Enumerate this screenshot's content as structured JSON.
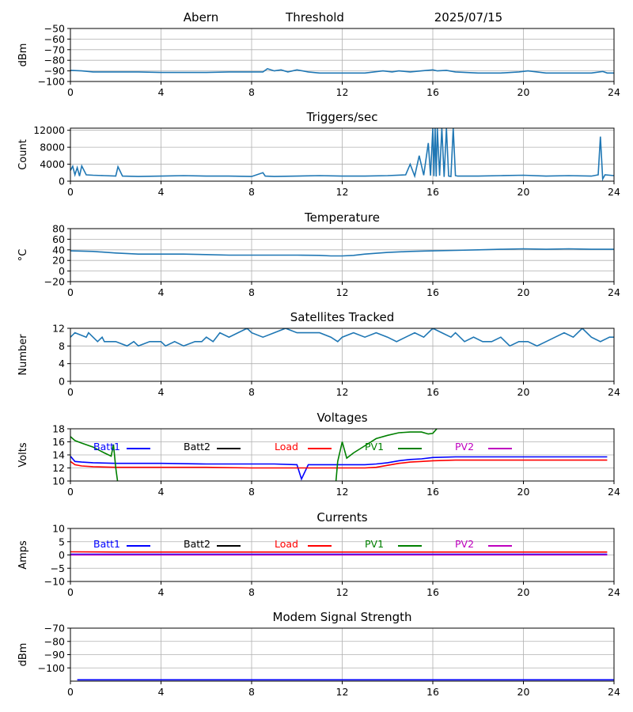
{
  "header": {
    "station": "Abern",
    "mode": "Threshold",
    "date": "2025/07/15"
  },
  "colors": {
    "series_default": "#1f77b4",
    "batt1": "#0000ff",
    "batt2": "#000000",
    "load": "#ff0000",
    "pv1": "#008000",
    "pv2": "#bf00bf",
    "grid": "#b0b0b0"
  },
  "chart_data": [
    {
      "id": "noise",
      "type": "line",
      "title": "",
      "xlabel": "",
      "ylabel": "dBm",
      "xlim": [
        0,
        24
      ],
      "ylim": [
        -100,
        -50
      ],
      "xticks": [
        0,
        4,
        8,
        12,
        16,
        20,
        24
      ],
      "yticks": [
        -100,
        -90,
        -80,
        -70,
        -60,
        -50
      ],
      "grid": true,
      "series": [
        {
          "color": "#1f77b4",
          "x": [
            0,
            0.5,
            1,
            2,
            3,
            4,
            5,
            6,
            7,
            8,
            8.5,
            8.7,
            9,
            9.3,
            9.6,
            10,
            10.5,
            11,
            12,
            13,
            13.8,
            14.2,
            14.5,
            15,
            15.5,
            16,
            16.2,
            16.6,
            17,
            18,
            19,
            19.8,
            20.2,
            20.6,
            21,
            22,
            23,
            23.5,
            23.7,
            24
          ],
          "y": [
            -89.5,
            -90,
            -91,
            -91,
            -91,
            -91.5,
            -91.5,
            -91.5,
            -91,
            -91,
            -91,
            -88,
            -90,
            -89,
            -91,
            -89,
            -91,
            -92,
            -92,
            -92,
            -90,
            -91,
            -90,
            -91,
            -90,
            -89,
            -90,
            -89.5,
            -91,
            -92,
            -92,
            -91,
            -90,
            -91,
            -92,
            -92,
            -92,
            -90.5,
            -92,
            -92
          ]
        }
      ]
    },
    {
      "id": "triggers",
      "type": "line",
      "title": "Triggers/sec",
      "xlabel": "",
      "ylabel": "Count",
      "xlim": [
        0,
        24
      ],
      "ylim": [
        0,
        12500
      ],
      "xticks": [
        0,
        4,
        8,
        12,
        16,
        20,
        24
      ],
      "yticks": [
        0,
        4000,
        8000,
        12000
      ],
      "grid": true,
      "series": [
        {
          "color": "#1f77b4",
          "x": [
            0,
            0.1,
            0.2,
            0.3,
            0.4,
            0.5,
            0.7,
            1,
            1.5,
            2,
            2.1,
            2.3,
            3,
            4,
            5,
            6,
            7,
            8,
            8.5,
            8.6,
            9,
            10,
            11,
            12,
            13,
            14,
            14.8,
            15,
            15.2,
            15.4,
            15.6,
            15.8,
            15.9,
            16,
            16.05,
            16.1,
            16.15,
            16.2,
            16.3,
            16.4,
            16.5,
            16.6,
            16.7,
            16.8,
            16.9,
            17,
            17.1,
            18,
            19,
            20,
            21,
            22,
            23,
            23.3,
            23.4,
            23.5,
            23.6,
            24
          ],
          "y": [
            2500,
            3500,
            1500,
            3200,
            1200,
            3600,
            1500,
            1400,
            1300,
            1200,
            3400,
            1200,
            1100,
            1200,
            1300,
            1200,
            1200,
            1100,
            2000,
            1200,
            1100,
            1200,
            1300,
            1200,
            1200,
            1300,
            1500,
            4000,
            1200,
            6000,
            1400,
            9000,
            1300,
            12500,
            1200,
            12500,
            1100,
            12500,
            1300,
            12500,
            1000,
            12500,
            1200,
            1100,
            12500,
            1300,
            1200,
            1200,
            1300,
            1400,
            1200,
            1300,
            1200,
            1500,
            10500,
            500,
            1500,
            1300
          ]
        }
      ]
    },
    {
      "id": "temperature",
      "type": "line",
      "title": "Temperature",
      "xlabel": "",
      "ylabel": "°C",
      "xlim": [
        0,
        24
      ],
      "ylim": [
        -20,
        80
      ],
      "xticks": [
        0,
        4,
        8,
        12,
        16,
        20,
        24
      ],
      "yticks": [
        -20,
        0,
        20,
        40,
        60,
        80
      ],
      "grid": true,
      "series": [
        {
          "color": "#1f77b4",
          "x": [
            0,
            1,
            2,
            3,
            4,
            5,
            6,
            7,
            8,
            9,
            10,
            11,
            11.5,
            12,
            12.5,
            13,
            14,
            15,
            16,
            17,
            18,
            19,
            20,
            21,
            22,
            23,
            24
          ],
          "y": [
            38,
            37,
            34,
            32,
            32,
            32,
            31,
            30,
            30,
            30,
            30,
            29.5,
            28.5,
            28.5,
            29.5,
            32,
            35,
            37,
            38,
            39,
            40,
            41,
            42,
            41,
            42,
            41,
            41
          ]
        }
      ]
    },
    {
      "id": "satellites",
      "type": "line",
      "title": "Satellites Tracked",
      "xlabel": "",
      "ylabel": "Number",
      "xlim": [
        0,
        24
      ],
      "ylim": [
        0,
        12
      ],
      "xticks": [
        0,
        4,
        8,
        12,
        16,
        20,
        24
      ],
      "yticks": [
        0,
        4,
        8,
        12
      ],
      "grid": true,
      "series": [
        {
          "color": "#1f77b4",
          "x": [
            0,
            0.2,
            0.7,
            0.8,
            1.0,
            1.2,
            1.4,
            1.5,
            2.0,
            2.5,
            2.8,
            3.0,
            3.5,
            4.0,
            4.2,
            4.6,
            5.0,
            5.5,
            5.8,
            6.0,
            6.3,
            6.6,
            7.0,
            7.4,
            7.8,
            8.0,
            8.5,
            9.0,
            9.5,
            10.0,
            10.5,
            11.0,
            11.5,
            11.8,
            12.0,
            12.5,
            13.0,
            13.5,
            14.0,
            14.4,
            14.8,
            15.2,
            15.6,
            16.0,
            16.4,
            16.8,
            17.0,
            17.4,
            17.8,
            18.2,
            18.6,
            19.0,
            19.4,
            19.8,
            20.2,
            20.6,
            21.0,
            21.4,
            21.8,
            22.2,
            22.6,
            23.0,
            23.4,
            23.8,
            24
          ],
          "y": [
            10,
            11,
            10,
            11,
            10,
            9,
            10,
            9,
            9,
            8,
            9,
            8,
            9,
            9,
            8,
            9,
            8,
            9,
            9,
            10,
            9,
            11,
            10,
            11,
            12,
            11,
            10,
            11,
            12,
            11,
            11,
            11,
            10,
            9,
            10,
            11,
            10,
            11,
            10,
            9,
            10,
            11,
            10,
            12,
            11,
            10,
            11,
            9,
            10,
            9,
            9,
            10,
            8,
            9,
            9,
            8,
            9,
            10,
            11,
            10,
            12,
            10,
            9,
            10,
            10
          ]
        }
      ]
    },
    {
      "id": "voltages",
      "type": "line",
      "title": "Voltages",
      "xlabel": "",
      "ylabel": "Volts",
      "xlim": [
        0,
        24
      ],
      "ylim": [
        10,
        18
      ],
      "xticks": [
        0,
        4,
        8,
        12,
        16,
        20,
        24
      ],
      "yticks": [
        10,
        12,
        14,
        16,
        18
      ],
      "grid": true,
      "legend": "inline-top",
      "series": [
        {
          "name": "Batt1",
          "color": "#0000ff",
          "x": [
            0,
            0.2,
            0.5,
            1,
            2,
            4,
            6,
            8,
            9,
            10,
            10.2,
            10.5,
            11,
            12,
            13,
            13.5,
            14,
            14.5,
            15,
            15.5,
            16,
            17,
            18,
            20,
            22,
            23.7
          ],
          "y": [
            13.8,
            13.0,
            12.9,
            12.8,
            12.7,
            12.7,
            12.6,
            12.6,
            12.6,
            12.5,
            10.3,
            12.5,
            12.5,
            12.5,
            12.5,
            12.6,
            12.8,
            13.1,
            13.3,
            13.4,
            13.6,
            13.7,
            13.7,
            13.7,
            13.7,
            13.7
          ]
        },
        {
          "name": "Load",
          "color": "#ff0000",
          "x": [
            0,
            0.2,
            0.5,
            1,
            2,
            4,
            6,
            8,
            10,
            12,
            13,
            13.5,
            14,
            14.5,
            15,
            15.5,
            16,
            17,
            18,
            20,
            22,
            23.7
          ],
          "y": [
            13.0,
            12.5,
            12.3,
            12.2,
            12.1,
            12.1,
            12.1,
            12.0,
            12.0,
            12.0,
            12.0,
            12.1,
            12.4,
            12.7,
            12.9,
            13.0,
            13.1,
            13.2,
            13.2,
            13.2,
            13.2,
            13.2
          ]
        },
        {
          "name": "PV1",
          "color": "#008000",
          "x": [
            0,
            0.2,
            0.5,
            1.0,
            1.5,
            1.8,
            1.9,
            2.0,
            2.1,
            2.2
          ],
          "y": [
            16.8,
            16.2,
            15.8,
            15.2,
            14.3,
            13.8,
            15.6,
            12.0,
            9.5,
            9.0
          ]
        },
        {
          "name": "PV1",
          "color": "#008000",
          "x": [
            11.7,
            11.8,
            12.0,
            12.2,
            12.5,
            13.0,
            13.5,
            14.0,
            14.5,
            15.0,
            15.5,
            15.8,
            16.0,
            16.3
          ],
          "y": [
            9.0,
            13.0,
            16.0,
            13.5,
            14.3,
            15.4,
            16.5,
            17.0,
            17.4,
            17.5,
            17.5,
            17.2,
            17.3,
            18.5
          ]
        }
      ]
    },
    {
      "id": "currents",
      "type": "line",
      "title": "Currents",
      "xlabel": "",
      "ylabel": "Amps",
      "xlim": [
        0,
        24
      ],
      "ylim": [
        -10,
        10
      ],
      "xticks": [
        0,
        4,
        8,
        12,
        16,
        20,
        24
      ],
      "yticks": [
        -10,
        -5,
        0,
        5,
        10
      ],
      "grid": true,
      "legend": "inline-top",
      "series": [
        {
          "name": "Batt1",
          "color": "#0000ff",
          "x": [
            0,
            2,
            4,
            6,
            8,
            10,
            12,
            14,
            16,
            18,
            20,
            22,
            23.7
          ],
          "y": [
            0.3,
            0.3,
            0.3,
            0.3,
            0.3,
            0.3,
            0.3,
            0.3,
            0.3,
            0.3,
            0.3,
            0.3,
            0.3
          ]
        },
        {
          "name": "Load",
          "color": "#ff0000",
          "x": [
            0,
            2,
            4,
            6,
            8,
            10,
            12,
            14,
            16,
            18,
            20,
            22,
            23.7
          ],
          "y": [
            1.2,
            1.1,
            1.1,
            1.1,
            1.1,
            1.1,
            1.1,
            1.1,
            1.1,
            1.1,
            1.1,
            1.1,
            1.1
          ]
        },
        {
          "name": "PV2",
          "color": "#bf00bf",
          "x": [
            0,
            2,
            4,
            6,
            8,
            10,
            12,
            14,
            16,
            18,
            20,
            22,
            23.7
          ],
          "y": [
            0.0,
            0.0,
            0.0,
            0.0,
            0.0,
            0.0,
            0.0,
            0.0,
            0.0,
            0.0,
            0.0,
            0.0,
            0.0
          ]
        }
      ]
    },
    {
      "id": "modem",
      "type": "line",
      "title": "Modem Signal Strength",
      "xlabel": "",
      "ylabel": "dBm",
      "xlim": [
        0,
        24
      ],
      "ylim": [
        -110,
        -70
      ],
      "xticks": [
        0,
        4,
        8,
        12,
        16,
        20,
        24
      ],
      "yticks": [
        -100,
        -90,
        -80,
        -70
      ],
      "grid": true,
      "series": [
        {
          "color": "#0000ff",
          "x": [
            0.3,
            24
          ],
          "y": [
            -109,
            -109
          ]
        }
      ]
    }
  ],
  "legend_labels": [
    "Batt1",
    "Batt2",
    "Load",
    "PV1",
    "PV2"
  ]
}
